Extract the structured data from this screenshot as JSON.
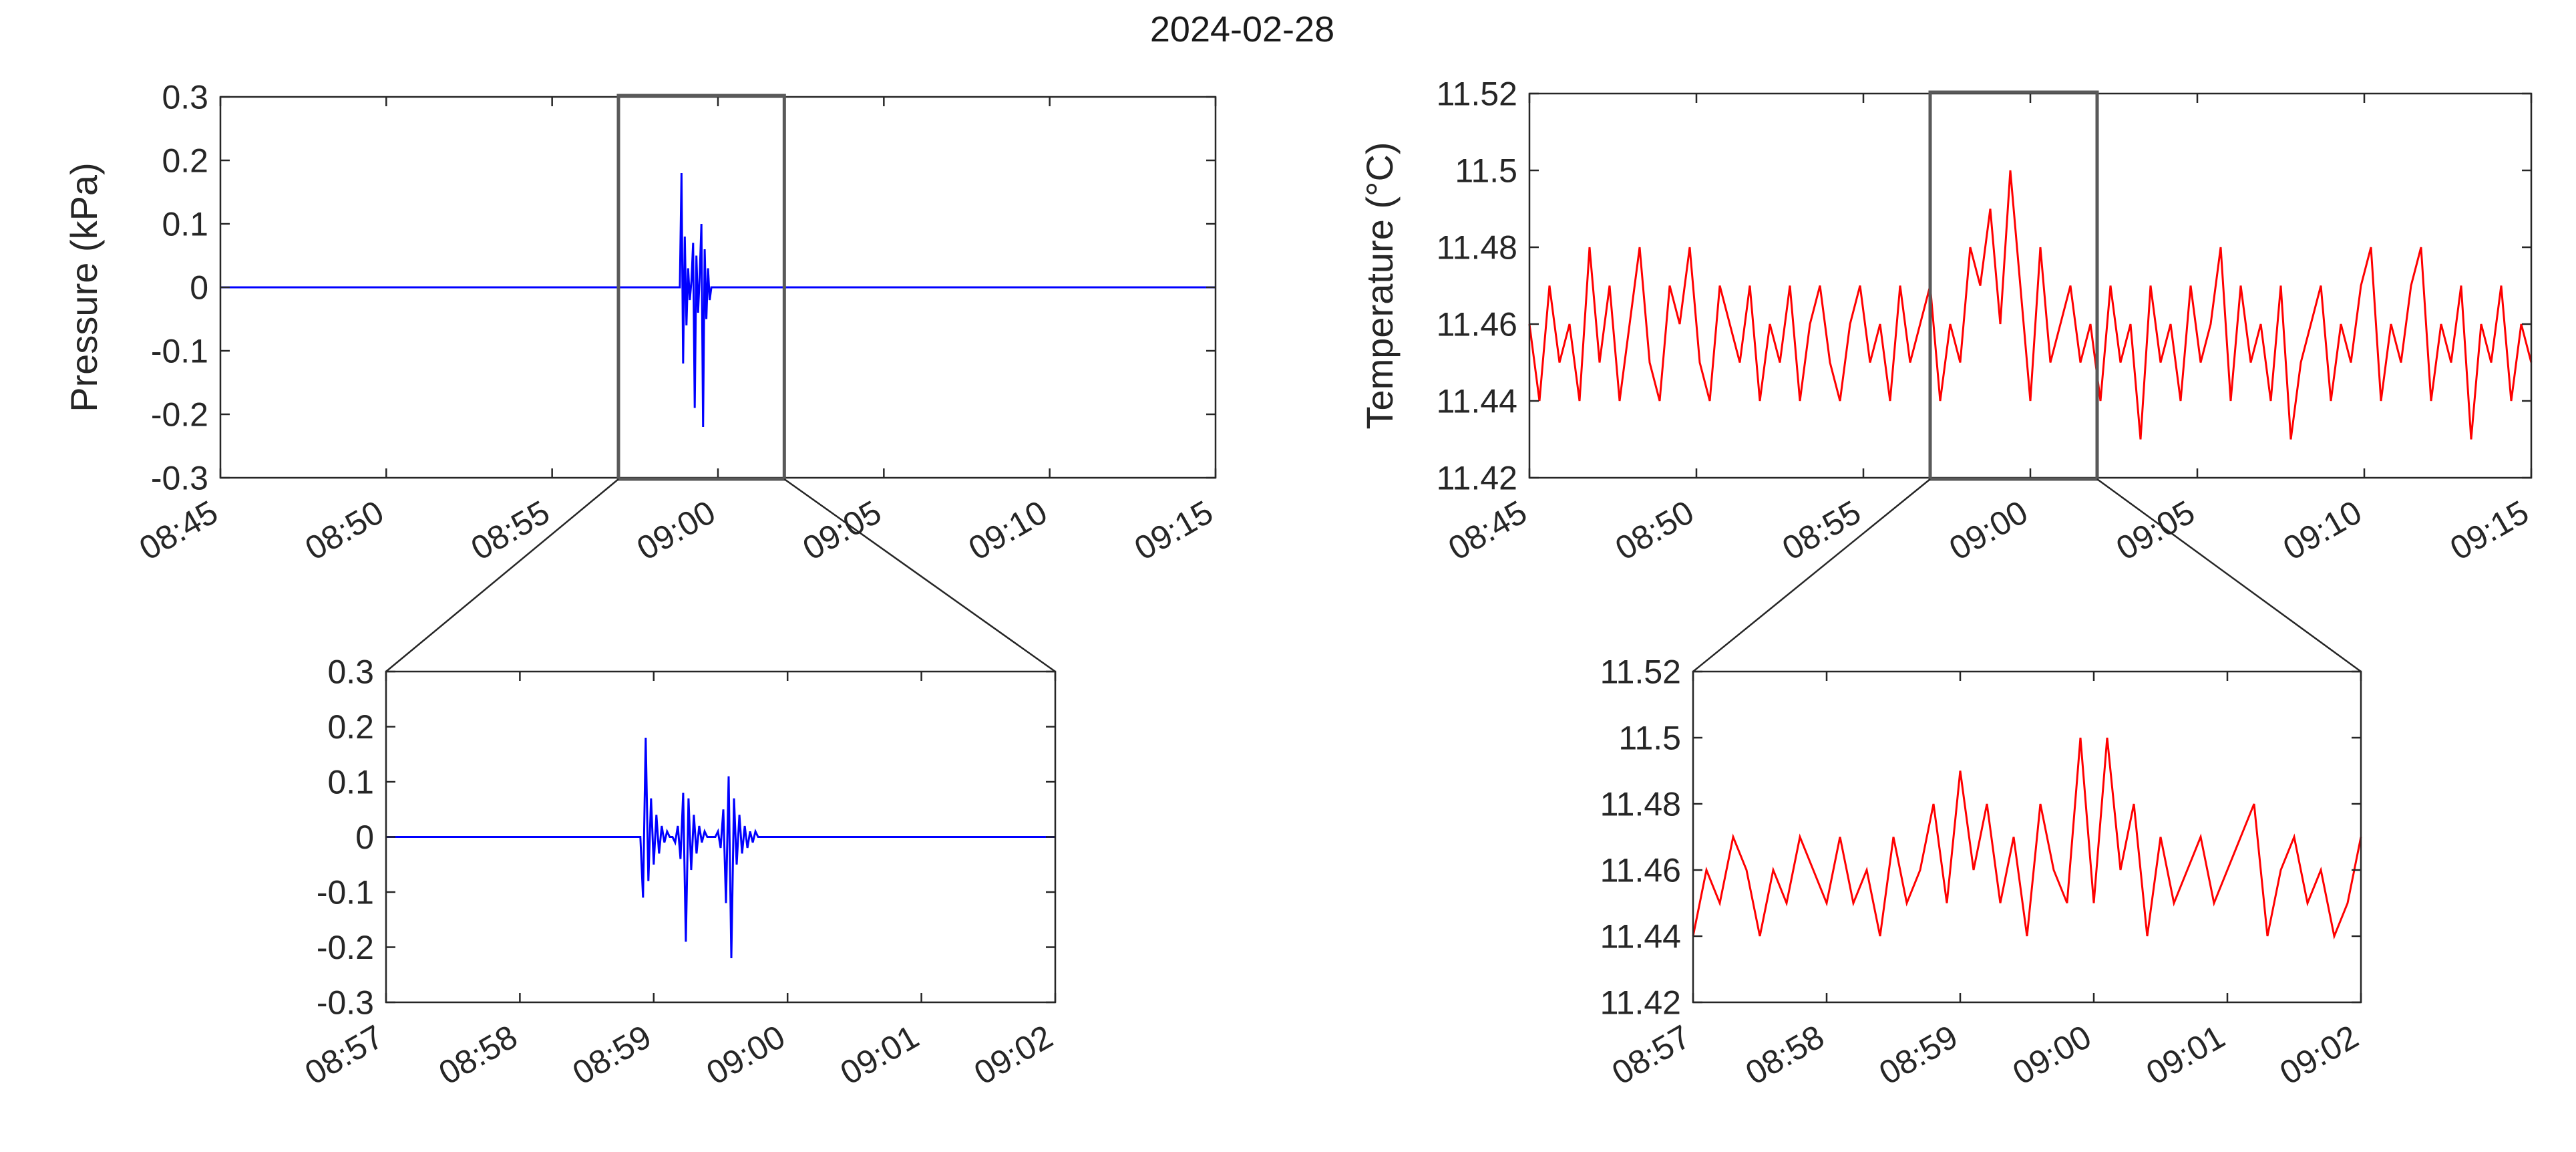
{
  "figure": {
    "title": "2024-02-28"
  },
  "chart_data": [
    {
      "id": "pressure-main",
      "type": "line",
      "title": "",
      "xlabel": "",
      "ylabel": "Pressure (kPa)",
      "color": "#0000ff",
      "xlim": [
        0,
        30
      ],
      "ylim": [
        -0.3,
        0.3
      ],
      "x_tick_values": [
        0,
        5,
        10,
        15,
        20,
        25,
        30
      ],
      "x_tick_labels": [
        "08:45",
        "08:50",
        "08:55",
        "09:00",
        "09:05",
        "09:10",
        "09:15"
      ],
      "y_tick_values": [
        0.3,
        0.2,
        0.1,
        0,
        -0.1,
        -0.2,
        -0.3
      ],
      "y_tick_labels": [
        "0.3",
        "0.2",
        "0.1",
        "0",
        "-0.1",
        "-0.2",
        "-0.3"
      ],
      "zoom_box": [
        12,
        17
      ],
      "series": [
        {
          "x": [
            0,
            13.85,
            13.9,
            13.95,
            14.0,
            14.05,
            14.1,
            14.15,
            14.2,
            14.25,
            14.3,
            14.35,
            14.4,
            14.45,
            14.5,
            14.55,
            14.6,
            14.65,
            14.7,
            14.75,
            14.8,
            30
          ],
          "y": [
            0,
            0,
            0.18,
            -0.12,
            0.08,
            -0.06,
            0.03,
            -0.02,
            0.01,
            0.07,
            -0.19,
            0.05,
            -0.04,
            0.02,
            0.1,
            -0.22,
            0.06,
            -0.05,
            0.03,
            -0.02,
            0,
            0
          ]
        }
      ]
    },
    {
      "id": "pressure-zoom",
      "type": "line",
      "title": "",
      "xlabel": "",
      "ylabel": "",
      "color": "#0000ff",
      "xlim": [
        0,
        5
      ],
      "ylim": [
        -0.3,
        0.3
      ],
      "x_tick_values": [
        0,
        1,
        2,
        3,
        4,
        5
      ],
      "x_tick_labels": [
        "08:57",
        "08:58",
        "08:59",
        "09:00",
        "09:01",
        "09:02"
      ],
      "y_tick_values": [
        0.3,
        0.2,
        0.1,
        0,
        -0.1,
        -0.2,
        -0.3
      ],
      "y_tick_labels": [
        "0.3",
        "0.2",
        "0.1",
        "0",
        "-0.1",
        "-0.2",
        "-0.3"
      ],
      "series": [
        {
          "x": [
            0,
            1.9,
            1.92,
            1.94,
            1.96,
            1.98,
            2.0,
            2.02,
            2.04,
            2.06,
            2.08,
            2.1,
            2.12,
            2.14,
            2.16,
            2.18,
            2.2,
            2.22,
            2.24,
            2.26,
            2.28,
            2.3,
            2.32,
            2.34,
            2.36,
            2.38,
            2.4,
            2.42,
            2.44,
            2.46,
            2.48,
            2.5,
            2.52,
            2.54,
            2.56,
            2.58,
            2.6,
            2.62,
            2.64,
            2.66,
            2.68,
            2.7,
            2.72,
            2.74,
            2.76,
            2.78,
            2.8,
            2.82,
            2.84,
            2.86,
            2.88,
            2.9,
            5
          ],
          "y": [
            0,
            0,
            -0.11,
            0.18,
            -0.08,
            0.07,
            -0.05,
            0.04,
            -0.03,
            0.02,
            -0.01,
            0.01,
            0,
            0,
            -0.01,
            0.02,
            -0.04,
            0.08,
            -0.19,
            0.07,
            -0.06,
            0.04,
            -0.03,
            0.02,
            -0.01,
            0.01,
            0,
            0,
            0,
            0,
            0.01,
            -0.02,
            0.05,
            -0.12,
            0.11,
            -0.22,
            0.07,
            -0.05,
            0.04,
            -0.03,
            0.02,
            -0.02,
            0.01,
            -0.01,
            0.01,
            0,
            0,
            0,
            0,
            0,
            0,
            0,
            0
          ]
        }
      ]
    },
    {
      "id": "temperature-main",
      "type": "line",
      "title": "",
      "xlabel": "",
      "ylabel": "Temperature (°C)",
      "color": "#ff0000",
      "xlim": [
        0,
        30
      ],
      "ylim": [
        11.42,
        11.52
      ],
      "x_tick_values": [
        0,
        5,
        10,
        15,
        20,
        25,
        30
      ],
      "x_tick_labels": [
        "08:45",
        "08:50",
        "08:55",
        "09:00",
        "09:05",
        "09:10",
        "09:15"
      ],
      "y_tick_values": [
        11.52,
        11.5,
        11.48,
        11.46,
        11.44,
        11.42
      ],
      "y_tick_labels": [
        "11.52",
        "11.5",
        "11.48",
        "11.46",
        "11.44",
        "11.42"
      ],
      "zoom_box": [
        12,
        17
      ],
      "series": [
        {
          "x": [
            0,
            0.3,
            0.6,
            0.9,
            1.2,
            1.5,
            1.8,
            2.1,
            2.4,
            2.7,
            3.0,
            3.3,
            3.6,
            3.9,
            4.2,
            4.5,
            4.8,
            5.1,
            5.4,
            5.7,
            6.0,
            6.3,
            6.6,
            6.9,
            7.2,
            7.5,
            7.8,
            8.1,
            8.4,
            8.7,
            9.0,
            9.3,
            9.6,
            9.9,
            10.2,
            10.5,
            10.8,
            11.1,
            11.4,
            11.7,
            12.0,
            12.3,
            12.6,
            12.9,
            13.2,
            13.5,
            13.8,
            14.1,
            14.4,
            14.7,
            15.0,
            15.3,
            15.6,
            15.9,
            16.2,
            16.5,
            16.8,
            17.1,
            17.4,
            17.7,
            18.0,
            18.3,
            18.6,
            18.9,
            19.2,
            19.5,
            19.8,
            20.1,
            20.4,
            20.7,
            21.0,
            21.3,
            21.6,
            21.9,
            22.2,
            22.5,
            22.8,
            23.1,
            23.4,
            23.7,
            24.0,
            24.3,
            24.6,
            24.9,
            25.2,
            25.5,
            25.8,
            26.1,
            26.4,
            26.7,
            27.0,
            27.3,
            27.6,
            27.9,
            28.2,
            28.5,
            28.8,
            29.1,
            29.4,
            29.7,
            30.0
          ],
          "y": [
            11.46,
            11.44,
            11.47,
            11.45,
            11.46,
            11.44,
            11.48,
            11.45,
            11.47,
            11.44,
            11.46,
            11.48,
            11.45,
            11.44,
            11.47,
            11.46,
            11.48,
            11.45,
            11.44,
            11.47,
            11.46,
            11.45,
            11.47,
            11.44,
            11.46,
            11.45,
            11.47,
            11.44,
            11.46,
            11.47,
            11.45,
            11.44,
            11.46,
            11.47,
            11.45,
            11.46,
            11.44,
            11.47,
            11.45,
            11.46,
            11.47,
            11.44,
            11.46,
            11.45,
            11.48,
            11.47,
            11.49,
            11.46,
            11.5,
            11.47,
            11.44,
            11.48,
            11.45,
            11.46,
            11.47,
            11.45,
            11.46,
            11.44,
            11.47,
            11.45,
            11.46,
            11.43,
            11.47,
            11.45,
            11.46,
            11.44,
            11.47,
            11.45,
            11.46,
            11.48,
            11.44,
            11.47,
            11.45,
            11.46,
            11.44,
            11.47,
            11.43,
            11.45,
            11.46,
            11.47,
            11.44,
            11.46,
            11.45,
            11.47,
            11.48,
            11.44,
            11.46,
            11.45,
            11.47,
            11.48,
            11.44,
            11.46,
            11.45,
            11.47,
            11.43,
            11.46,
            11.45,
            11.47,
            11.44,
            11.46,
            11.45
          ]
        }
      ]
    },
    {
      "id": "temperature-zoom",
      "type": "line",
      "title": "",
      "xlabel": "",
      "ylabel": "",
      "color": "#ff0000",
      "xlim": [
        0,
        5
      ],
      "ylim": [
        11.42,
        11.52
      ],
      "x_tick_values": [
        0,
        1,
        2,
        3,
        4,
        5
      ],
      "x_tick_labels": [
        "08:57",
        "08:58",
        "08:59",
        "09:00",
        "09:01",
        "09:02"
      ],
      "y_tick_values": [
        11.52,
        11.5,
        11.48,
        11.46,
        11.44,
        11.42
      ],
      "y_tick_labels": [
        "11.52",
        "11.5",
        "11.48",
        "11.46",
        "11.44",
        "11.42"
      ],
      "series": [
        {
          "x": [
            0,
            0.1,
            0.2,
            0.3,
            0.4,
            0.5,
            0.6,
            0.7,
            0.8,
            0.9,
            1.0,
            1.1,
            1.2,
            1.3,
            1.4,
            1.5,
            1.6,
            1.7,
            1.8,
            1.9,
            2.0,
            2.1,
            2.2,
            2.3,
            2.4,
            2.5,
            2.6,
            2.7,
            2.8,
            2.9,
            3.0,
            3.1,
            3.2,
            3.3,
            3.4,
            3.5,
            3.6,
            3.7,
            3.8,
            3.9,
            4.0,
            4.1,
            4.2,
            4.3,
            4.4,
            4.5,
            4.6,
            4.7,
            4.8,
            4.9,
            5.0
          ],
          "y": [
            11.44,
            11.46,
            11.45,
            11.47,
            11.46,
            11.44,
            11.46,
            11.45,
            11.47,
            11.46,
            11.45,
            11.47,
            11.45,
            11.46,
            11.44,
            11.47,
            11.45,
            11.46,
            11.48,
            11.45,
            11.49,
            11.46,
            11.48,
            11.45,
            11.47,
            11.44,
            11.48,
            11.46,
            11.45,
            11.5,
            11.45,
            11.5,
            11.46,
            11.48,
            11.44,
            11.47,
            11.45,
            11.46,
            11.47,
            11.45,
            11.46,
            11.47,
            11.48,
            11.44,
            11.46,
            11.47,
            11.45,
            11.46,
            11.44,
            11.45,
            11.47
          ]
        }
      ]
    }
  ]
}
